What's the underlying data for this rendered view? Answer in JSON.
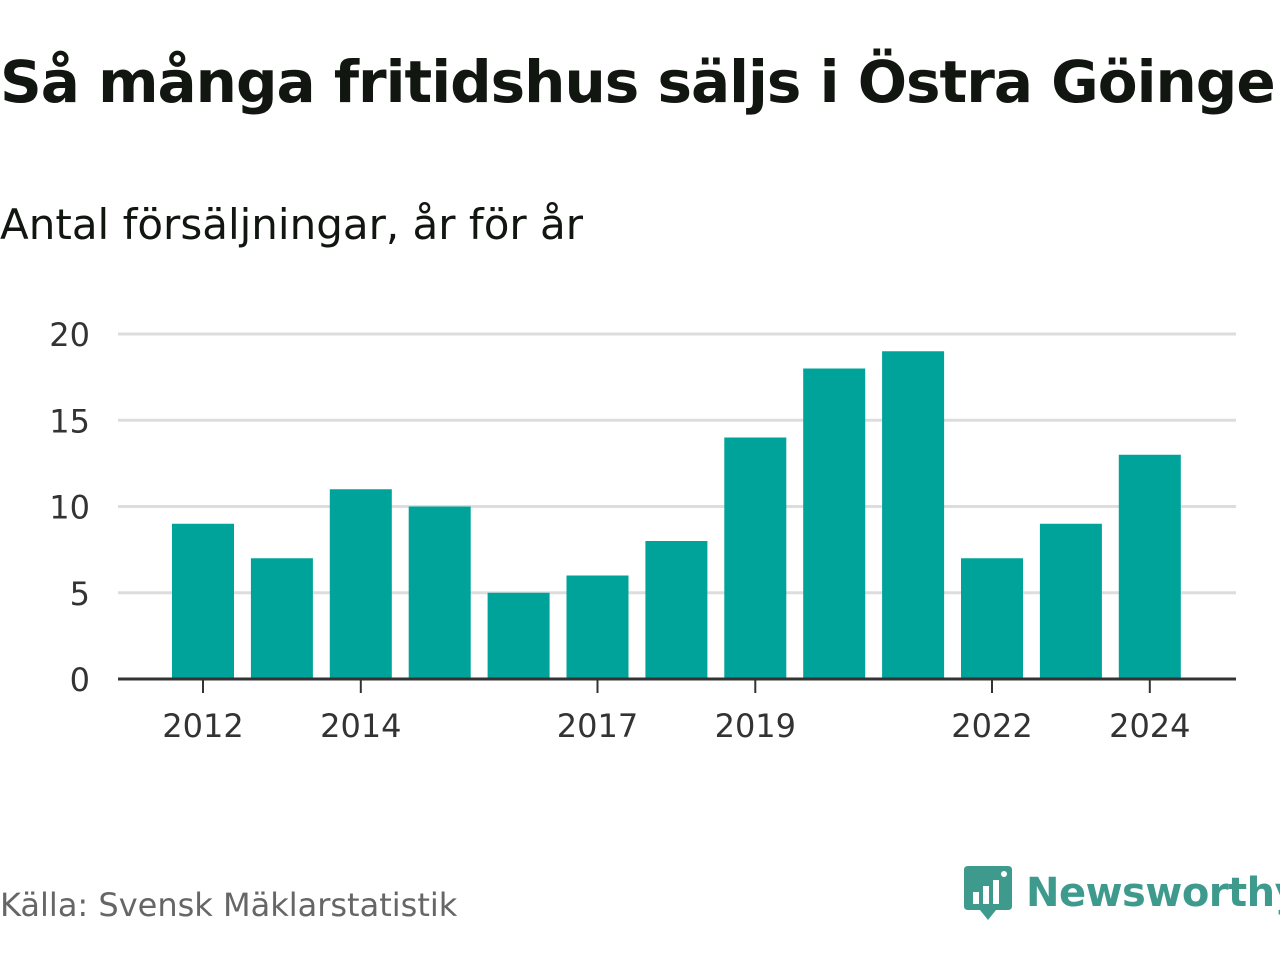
{
  "title": "Så många fritidshus säljs i Östra Göinge",
  "subtitle": "Antal försäljningar, år för år",
  "source": "Källa: Svensk Mäklarstatistik",
  "logo_text": "Newsworthy",
  "colors": {
    "bar": "#00a39a",
    "grid": "#dddddd",
    "axis": "#333333",
    "tick_text": "#333333",
    "logo": "#3f9a8e"
  },
  "chart_data": {
    "type": "bar",
    "categories": [
      "2012",
      "2013",
      "2014",
      "2015",
      "2016",
      "2017",
      "2018",
      "2019",
      "2020",
      "2021",
      "2022",
      "2023",
      "2024"
    ],
    "values": [
      9,
      7,
      11,
      10,
      5,
      6,
      8,
      14,
      18,
      19,
      7,
      9,
      13
    ],
    "x_tick_labels": [
      "2012",
      "2014",
      "2017",
      "2019",
      "2022",
      "2024"
    ],
    "y_ticks": [
      0,
      5,
      10,
      15,
      20
    ],
    "ylim": [
      0,
      20
    ],
    "grid": true,
    "xlabel": "",
    "ylabel": ""
  }
}
